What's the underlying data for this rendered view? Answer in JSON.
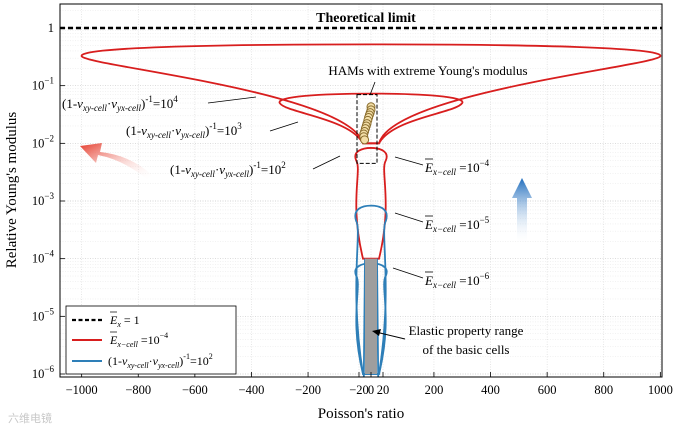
{
  "chart_data": {
    "type": "line",
    "xlabel": "Poisson's ratio",
    "ylabel": "Relative Young's modulus",
    "xlim": [
      -1100,
      1100
    ],
    "ylim": [
      1e-06,
      3
    ],
    "yscale": "log",
    "grid": true,
    "x_ticks": [
      -1000,
      -800,
      -600,
      -400,
      -200,
      -20,
      0,
      20,
      200,
      400,
      600,
      800,
      1000
    ],
    "x_tick_labels": [
      "−1000",
      "−800",
      "−600",
      "−400",
      "−200",
      "−20",
      "0",
      "20",
      "200",
      "400",
      "600",
      "800",
      "1000"
    ],
    "y_ticks": [
      {
        "value": 1e-06,
        "base": "10",
        "exp": "−6"
      },
      {
        "value": 1e-05,
        "base": "10",
        "exp": "−5"
      },
      {
        "value": 0.0001,
        "base": "10",
        "exp": "−4"
      },
      {
        "value": 0.001,
        "base": "10",
        "exp": "−3"
      },
      {
        "value": 0.01,
        "base": "10",
        "exp": "−2"
      },
      {
        "value": 0.1,
        "base": "10",
        "exp": "−1"
      },
      {
        "value": 1,
        "base": "1",
        "exp": ""
      }
    ],
    "theoretical_limit": {
      "value": 1,
      "label": "Theoretical limit"
    },
    "loops": [
      {
        "color": "#d81e1e",
        "max_E": 0.5,
        "max_nu": 1000,
        "min_E": 0.01
      },
      {
        "color": "#d81e1e",
        "max_E": 0.07,
        "max_nu": 300,
        "min_E": 0.01
      },
      {
        "color": "#d81e1e",
        "max_E": 0.008,
        "max_nu": 30,
        "min_E": 0.0001
      },
      {
        "color": "#2e7fb8",
        "max_E": 0.0008,
        "max_nu": 30,
        "min_E": 1e-06
      },
      {
        "color": "#2e7fb8",
        "max_E": 8e-05,
        "max_nu": 30,
        "min_E": 1e-06
      }
    ],
    "basic_cell_range": {
      "nu": [
        -10,
        10
      ],
      "E": [
        1e-06,
        0.0001
      ]
    },
    "ham_points": [
      {
        "x": 5,
        "y": 0.043
      },
      {
        "x": 5,
        "y": 0.038
      },
      {
        "x": 4,
        "y": 0.034
      },
      {
        "x": 3,
        "y": 0.031
      },
      {
        "x": 2,
        "y": 0.028
      },
      {
        "x": 1,
        "y": 0.025
      },
      {
        "x": 0,
        "y": 0.022
      },
      {
        "x": -1,
        "y": 0.02
      },
      {
        "x": -2,
        "y": 0.018
      },
      {
        "x": -3,
        "y": 0.016
      },
      {
        "x": -4,
        "y": 0.0145
      },
      {
        "x": -4,
        "y": 0.013
      },
      {
        "x": -3,
        "y": 0.0115
      }
    ],
    "annotations": {
      "hams": "HAMs with extreme Young's modulus",
      "elastic_line1": "Elastic property range",
      "elastic_line2": "of the basic cells",
      "c1": {
        "prefix": "(1-",
        "nu1": "ν",
        "s1": "xy-cell",
        "dot": "·",
        "nu2": "ν",
        "s2": "yx-cell",
        "mid": ")",
        "p": "-1",
        "eq": "=10",
        "exp": "4"
      },
      "c2": {
        "prefix": "(1-",
        "nu1": "ν",
        "s1": "xy-cell",
        "dot": "·",
        "nu2": "ν",
        "s2": "yx-cell",
        "mid": ")",
        "p": "-1",
        "eq": "=10",
        "exp": "3"
      },
      "c3": {
        "prefix": "(1-",
        "nu1": "ν",
        "s1": "xy-cell",
        "dot": "·",
        "nu2": "ν",
        "s2": "yx-cell",
        "mid": ")",
        "p": "-1",
        "eq": "=10",
        "exp": "2"
      },
      "e1": {
        "E": "E",
        "sub": "x−cell",
        "eq": " =10",
        "exp": "−4"
      },
      "e2": {
        "E": "E",
        "sub": "x−cell",
        "eq": " =10",
        "exp": "−5"
      },
      "e3": {
        "E": "E",
        "sub": "x−cell",
        "eq": " =10",
        "exp": "−6"
      }
    },
    "legend": {
      "position": "bottom-left",
      "entries": [
        {
          "style": "dashed",
          "color": "#000000",
          "E": "E",
          "sub": "x",
          "text": " = 1"
        },
        {
          "style": "solid",
          "color": "#d81e1e",
          "E": "E",
          "sub": "x−cell",
          "text": " =10",
          "exp": "−4"
        },
        {
          "style": "solid",
          "color": "#2e7fb8",
          "prefix": "(1-",
          "s1": "xy-cell",
          "dot": "·",
          "s2": "yx-cell",
          "mid": ")",
          "p": "-1",
          "text": "=10",
          "exp": "2"
        }
      ]
    }
  },
  "watermark": "六维电镜"
}
